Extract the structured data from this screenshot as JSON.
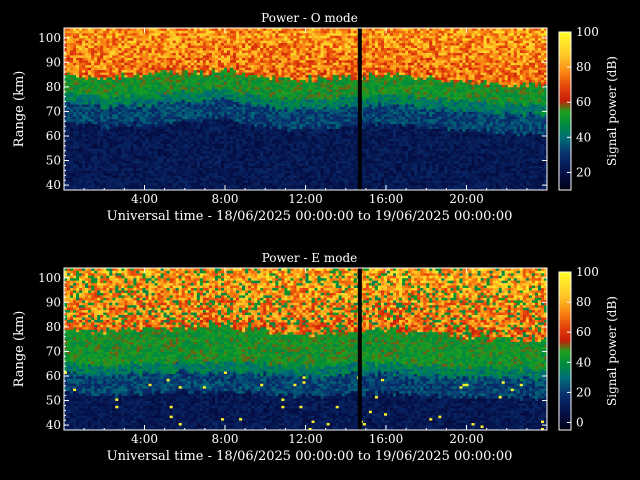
{
  "chart_data": [
    {
      "type": "heatmap",
      "title": "Power - O mode",
      "xlabel": "Universal time - 18/06/2025 00:00:00 to 19/06/2025 00:00:00",
      "ylabel": "Range (km)",
      "x_ticks": [
        "4:00",
        "8:00",
        "12:00",
        "16:00",
        "20:00"
      ],
      "x_tick_hours": [
        4,
        8,
        12,
        16,
        20
      ],
      "xlim_hours": [
        0,
        24
      ],
      "y_ticks": [
        "40",
        "50",
        "60",
        "70",
        "80",
        "90",
        "100"
      ],
      "y_tick_values": [
        40,
        50,
        60,
        70,
        80,
        90,
        100
      ],
      "ylim_km": [
        38,
        104
      ],
      "colorbar": {
        "label": "Signal power (dB)",
        "ticks": [
          "20",
          "40",
          "60",
          "80",
          "100"
        ],
        "tick_values": [
          20,
          40,
          60,
          80,
          100
        ],
        "range": [
          10,
          100
        ]
      },
      "profile_by_hour": {
        "hours": [
          0,
          2,
          4,
          6,
          8,
          10,
          12,
          14,
          16,
          18,
          20,
          22,
          24
        ],
        "green_layer_km": [
          78,
          76,
          77,
          78,
          79,
          76,
          75,
          76,
          77,
          76,
          74,
          73,
          73
        ],
        "orange_layer_km": [
          86,
          84,
          85,
          86,
          87,
          84,
          83,
          84,
          85,
          84,
          82,
          81,
          81
        ]
      },
      "data_gap_hour": 14.7
    },
    {
      "type": "heatmap",
      "title": "Power - E mode",
      "xlabel": "Universal time - 18/06/2025 00:00:00 to 19/06/2025 00:00:00",
      "ylabel": "Range (km)",
      "x_ticks": [
        "4:00",
        "8:00",
        "12:00",
        "16:00",
        "20:00"
      ],
      "x_tick_hours": [
        4,
        8,
        12,
        16,
        20
      ],
      "xlim_hours": [
        0,
        24
      ],
      "y_ticks": [
        "40",
        "50",
        "60",
        "70",
        "80",
        "90",
        "100"
      ],
      "y_tick_values": [
        40,
        50,
        60,
        70,
        80,
        90,
        100
      ],
      "ylim_km": [
        38,
        104
      ],
      "colorbar": {
        "label": "Signal power (dB)",
        "ticks": [
          "0",
          "20",
          "40",
          "60",
          "80",
          "100"
        ],
        "tick_values": [
          0,
          20,
          40,
          60,
          80,
          100
        ],
        "range": [
          -5,
          100
        ]
      },
      "profile_by_hour": {
        "hours": [
          0,
          2,
          4,
          6,
          8,
          10,
          12,
          14,
          16,
          18,
          20,
          22,
          24
        ],
        "green_layer_km": [
          66,
          64,
          65,
          66,
          66,
          65,
          64,
          65,
          65,
          64,
          64,
          63,
          63
        ],
        "orange_layer_km": [
          80,
          78,
          79,
          80,
          81,
          78,
          77,
          78,
          79,
          78,
          76,
          75,
          75
        ]
      },
      "data_gap_hour": 14.7
    }
  ]
}
